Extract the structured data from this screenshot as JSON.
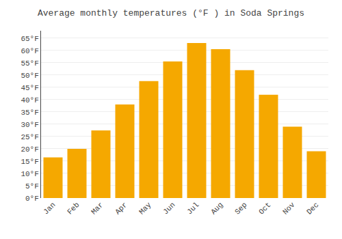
{
  "chart_data": {
    "type": "bar",
    "title": "Average monthly temperatures (°F ) in Soda Springs",
    "categories": [
      "Jan",
      "Feb",
      "Mar",
      "Apr",
      "May",
      "Jun",
      "Jul",
      "Aug",
      "Sep",
      "Oct",
      "Nov",
      "Dec"
    ],
    "values": [
      16.5,
      20.0,
      27.5,
      38.0,
      47.5,
      55.5,
      63.0,
      60.5,
      52.0,
      42.0,
      29.0,
      19.0
    ],
    "color": "#F5A800",
    "ylim": [
      0,
      68
    ],
    "yticks": [
      {
        "value": 0,
        "label": "0°F"
      },
      {
        "value": 5,
        "label": "5°F"
      },
      {
        "value": 10,
        "label": "10°F"
      },
      {
        "value": 15,
        "label": "15°F"
      },
      {
        "value": 20,
        "label": "20°F"
      },
      {
        "value": 25,
        "label": "25°F"
      },
      {
        "value": 30,
        "label": "30°F"
      },
      {
        "value": 35,
        "label": "35°F"
      },
      {
        "value": 40,
        "label": "40°F"
      },
      {
        "value": 45,
        "label": "45°F"
      },
      {
        "value": 50,
        "label": "50°F"
      },
      {
        "value": 55,
        "label": "55°F"
      },
      {
        "value": 60,
        "label": "60°F"
      },
      {
        "value": 65,
        "label": "65°F"
      }
    ],
    "grid": true
  }
}
